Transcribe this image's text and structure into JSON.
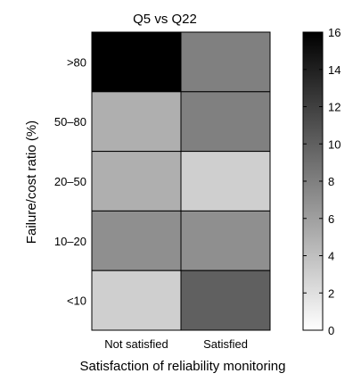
{
  "chart_data": {
    "type": "heatmap",
    "title": "Q5 vs Q22",
    "xlabel": "Satisfaction of reliability monitoring",
    "ylabel": "Failure/cost ratio (%)",
    "x_categories": [
      "Not satisfied",
      "Satisfied"
    ],
    "y_categories": [
      ">80",
      "50–80",
      "20–50",
      "10–20",
      "<10"
    ],
    "values": [
      [
        16,
        8
      ],
      [
        5,
        8
      ],
      [
        5,
        3
      ],
      [
        7,
        7
      ],
      [
        3,
        10
      ]
    ],
    "colorbar": {
      "min": 0,
      "max": 16,
      "ticks": [
        0,
        2,
        4,
        6,
        8,
        10,
        12,
        14,
        16
      ],
      "colormap": "grayscale (white = low, black = high)",
      "position": "right"
    },
    "grid": true
  }
}
